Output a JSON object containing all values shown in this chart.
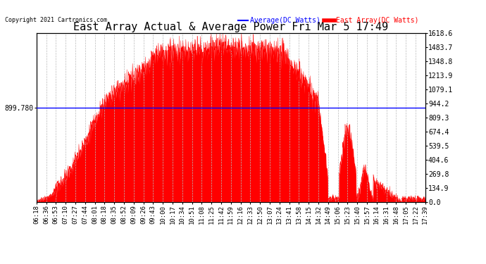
{
  "title": "East Array Actual & Average Power Fri Mar 5 17:49",
  "copyright": "Copyright 2021 Cartronics.com",
  "legend_avg": "Average(DC Watts)",
  "legend_east": "East Array(DC Watts)",
  "avg_line_value": 899.78,
  "avg_line_label": "899.780",
  "y_min": 0.0,
  "y_max": 1618.6,
  "y_ticks": [
    0.0,
    134.9,
    269.8,
    404.6,
    539.5,
    674.4,
    809.3,
    944.2,
    1079.1,
    1213.9,
    1348.8,
    1483.7,
    1618.6
  ],
  "background_color": "#ffffff",
  "fill_color": "#ff0000",
  "line_color": "#ff0000",
  "avg_color": "#0000ff",
  "grid_color": "#bbbbbb",
  "title_fontsize": 11,
  "tick_fontsize": 7,
  "x_tick_labels": [
    "06:18",
    "06:36",
    "06:53",
    "07:10",
    "07:27",
    "07:44",
    "08:01",
    "08:18",
    "08:35",
    "08:52",
    "09:09",
    "09:26",
    "09:43",
    "10:00",
    "10:17",
    "10:34",
    "10:51",
    "11:08",
    "11:25",
    "11:42",
    "11:59",
    "12:16",
    "12:33",
    "12:50",
    "13:07",
    "13:24",
    "13:41",
    "13:58",
    "14:15",
    "14:32",
    "14:49",
    "15:06",
    "15:23",
    "15:40",
    "15:57",
    "16:14",
    "16:31",
    "16:48",
    "17:05",
    "17:22",
    "17:39"
  ]
}
